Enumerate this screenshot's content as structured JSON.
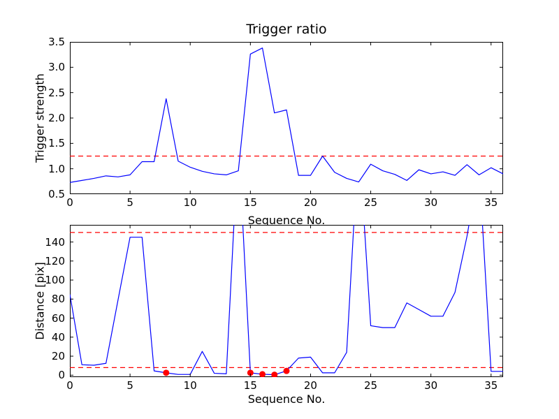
{
  "figure": {
    "background": "#ffffff",
    "frame_color": "#000000",
    "line_color": "#0000ff",
    "threshold_color": "#ff0000",
    "marker_color": "#ff0000"
  },
  "chart_data": [
    {
      "type": "line",
      "title": "Trigger ratio",
      "xlabel": "Sequence No.",
      "ylabel": "Trigger strength",
      "xlim": [
        0,
        36
      ],
      "ylim": [
        0.5,
        3.5
      ],
      "grid": false,
      "legend": null,
      "xticks": {
        "values": [
          0,
          5,
          10,
          15,
          20,
          25,
          30,
          35
        ],
        "labels": [
          "0",
          "5",
          "10",
          "15",
          "20",
          "25",
          "30",
          "35"
        ]
      },
      "yticks": {
        "values": [
          0.5,
          1.0,
          1.5,
          2.0,
          2.5,
          3.0,
          3.5
        ],
        "labels": [
          "0.5",
          "1.0",
          "1.5",
          "2.0",
          "2.5",
          "3.0",
          "3.5"
        ]
      },
      "x": [
        0,
        1,
        2,
        3,
        4,
        5,
        6,
        7,
        8,
        9,
        10,
        11,
        12,
        13,
        14,
        15,
        16,
        17,
        18,
        19,
        20,
        21,
        22,
        23,
        24,
        25,
        26,
        27,
        28,
        29,
        30,
        31,
        32,
        33,
        34,
        35,
        36
      ],
      "series": [
        {
          "name": "trigger-strength",
          "color": "#0000ff",
          "values": [
            0.73,
            0.77,
            0.81,
            0.86,
            0.84,
            0.88,
            1.14,
            1.14,
            2.38,
            1.15,
            1.03,
            0.95,
            0.9,
            0.88,
            0.96,
            3.26,
            3.38,
            2.1,
            2.16,
            0.87,
            0.87,
            1.25,
            0.93,
            0.81,
            0.74,
            1.09,
            0.96,
            0.89,
            0.77,
            0.98,
            0.9,
            0.94,
            0.87,
            1.08,
            0.88,
            1.02,
            0.9
          ]
        }
      ],
      "thresholds": [
        {
          "name": "trigger-threshold-line",
          "value": 1.25,
          "color": "#ff0000",
          "style": "dashed"
        }
      ]
    },
    {
      "type": "line",
      "title": "",
      "xlabel": "Sequence No.",
      "ylabel": "Distance [pix]",
      "xlim": [
        0,
        36
      ],
      "ylim": [
        -2,
        158
      ],
      "grid": false,
      "legend": null,
      "xticks": {
        "values": [
          0,
          5,
          10,
          15,
          20,
          25,
          30,
          35
        ],
        "labels": [
          "0",
          "5",
          "10",
          "15",
          "20",
          "25",
          "30",
          "35"
        ]
      },
      "yticks": {
        "values": [
          0,
          20,
          40,
          60,
          80,
          100,
          120,
          140
        ],
        "labels": [
          "0",
          "20",
          "40",
          "60",
          "80",
          "100",
          "120",
          "140"
        ]
      },
      "x": [
        0,
        1,
        2,
        3,
        4,
        5,
        6,
        7,
        8,
        9,
        10,
        11,
        12,
        13,
        14,
        15,
        16,
        17,
        18,
        19,
        20,
        21,
        22,
        23,
        24,
        25,
        26,
        27,
        28,
        29,
        30,
        31,
        32,
        33,
        34,
        35,
        36
      ],
      "series": [
        {
          "name": "distance",
          "color": "#0000ff",
          "values": [
            85,
            11,
            10.5,
            12.5,
            79,
            145,
            145,
            4.5,
            2.5,
            0.8,
            0.8,
            25,
            2,
            1.5,
            250,
            2.5,
            1,
            0.5,
            4.5,
            18,
            19,
            2.5,
            2.5,
            24,
            250,
            52,
            50,
            50,
            76,
            69,
            62,
            62,
            87,
            146,
            220,
            4,
            4
          ]
        }
      ],
      "thresholds": [
        {
          "name": "distance-upper-threshold-line",
          "value": 150,
          "color": "#ff0000",
          "style": "dashed"
        },
        {
          "name": "distance-lower-threshold-line",
          "value": 8,
          "color": "#ff0000",
          "style": "dashed"
        }
      ],
      "markers": {
        "name": "trigger-point-marker",
        "symbol": "circle",
        "color": "#ff0000",
        "points": [
          [
            8,
            2.5
          ],
          [
            15,
            2.5
          ],
          [
            16,
            1
          ],
          [
            17,
            0.5
          ],
          [
            18,
            4.5
          ]
        ]
      }
    }
  ]
}
